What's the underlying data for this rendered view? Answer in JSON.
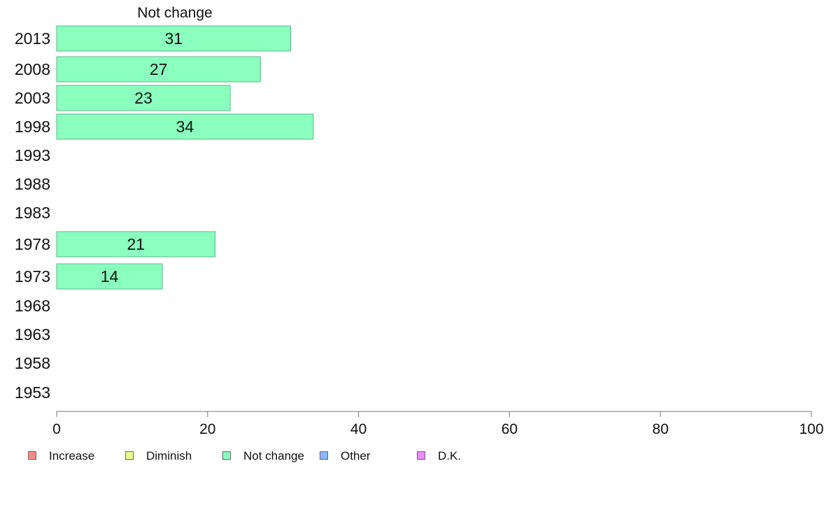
{
  "chart_data": {
    "type": "bar",
    "orientation": "horizontal",
    "title": "Not change",
    "categories": [
      "2013",
      "2008",
      "2003",
      "1998",
      "1993",
      "1988",
      "1983",
      "1978",
      "1973",
      "1968",
      "1963",
      "1958",
      "1953"
    ],
    "series": [
      {
        "name": "Not change",
        "color": "#8affbe",
        "values": [
          31,
          27,
          23,
          34,
          null,
          null,
          null,
          21,
          14,
          null,
          null,
          null,
          null
        ]
      }
    ],
    "xlim": [
      0,
      100
    ],
    "xticks": [
      0,
      20,
      40,
      60,
      80,
      100
    ],
    "grid": false,
    "legend_position": "bottom-left"
  },
  "legend": [
    {
      "label": "Increase",
      "color": "#ff8a8a"
    },
    {
      "label": "Diminish",
      "color": "#eeff8a"
    },
    {
      "label": "Not change",
      "color": "#8affbe"
    },
    {
      "label": "Other",
      "color": "#8ab8ff"
    },
    {
      "label": "D.K.",
      "color": "#ee8aff"
    }
  ]
}
